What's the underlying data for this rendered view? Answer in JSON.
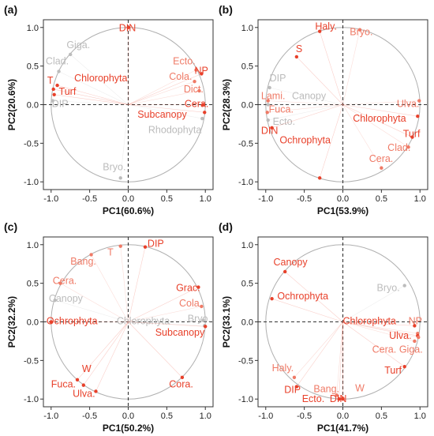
{
  "chart_data": [
    {
      "type": "scatter",
      "panel": "(a)",
      "xlabel": "PC1(60.6%)",
      "ylabel": "PC2(20.6%)",
      "xlim": [
        -1.1,
        1.1
      ],
      "ylim": [
        -1.1,
        1.1
      ],
      "xticks": [
        "-1.0",
        "-0.5",
        "0.0",
        "0.5",
        "1.0"
      ],
      "yticks": [
        "-1.0",
        "-0.5",
        "0.0",
        "0.5",
        "1.0"
      ],
      "colors": {
        "significant": "#e8402a",
        "mid": "#ef7a66",
        "faint": "#bcbcbc"
      },
      "points": [
        {
          "label": "DIN",
          "x": 0.0,
          "y": 1.0,
          "shade": "significant",
          "lx": -0.12,
          "ly": 0.95
        },
        {
          "label": "Giga.",
          "x": -0.75,
          "y": 0.65,
          "shade": "faint",
          "lx": -0.8,
          "ly": 0.73
        },
        {
          "label": "Clad.",
          "x": -0.9,
          "y": 0.43,
          "shade": "faint",
          "lx": -1.07,
          "ly": 0.52
        },
        {
          "label": "T",
          "x": -0.97,
          "y": 0.2,
          "shade": "significant",
          "lx": -1.05,
          "ly": 0.27
        },
        {
          "label": "Chlorophyta",
          "x": -0.92,
          "y": 0.25,
          "shade": "significant",
          "lx": -0.7,
          "ly": 0.3
        },
        {
          "label": "Turf",
          "x": -0.96,
          "y": 0.13,
          "shade": "significant",
          "lx": -0.9,
          "ly": 0.13
        },
        {
          "label": "DIP",
          "x": -0.98,
          "y": 0.05,
          "shade": "faint",
          "lx": -0.99,
          "ly": -0.03
        },
        {
          "label": "Ecto.",
          "x": 0.88,
          "y": 0.45,
          "shade": "mid",
          "lx": 0.58,
          "ly": 0.52
        },
        {
          "label": "NP",
          "x": 0.95,
          "y": 0.4,
          "shade": "significant",
          "lx": 0.86,
          "ly": 0.4
        },
        {
          "label": "Cola.",
          "x": 0.86,
          "y": 0.3,
          "shade": "mid",
          "lx": 0.53,
          "ly": 0.32
        },
        {
          "label": "Dict.",
          "x": 0.92,
          "y": 0.18,
          "shade": "mid",
          "lx": 0.72,
          "ly": 0.16
        },
        {
          "label": "Cera.",
          "x": 0.97,
          "y": 0.0,
          "shade": "significant",
          "lx": 0.73,
          "ly": -0.03
        },
        {
          "label": "Subcanopy",
          "x": 0.99,
          "y": -0.1,
          "shade": "significant",
          "lx": 0.12,
          "ly": -0.17
        },
        {
          "label": "Rhodophyta",
          "x": 0.96,
          "y": -0.18,
          "shade": "faint",
          "lx": 0.26,
          "ly": -0.37
        },
        {
          "label": "Bryo.",
          "x": -0.1,
          "y": -0.95,
          "shade": "faint",
          "lx": -0.33,
          "ly": -0.85
        }
      ]
    },
    {
      "type": "scatter",
      "panel": "(b)",
      "xlabel": "PC1(53.9%)",
      "ylabel": "PC2(28.3%)",
      "xlim": [
        -1.1,
        1.1
      ],
      "ylim": [
        -1.1,
        1.1
      ],
      "xticks": [
        "-1.0",
        "-0.5",
        "0.0",
        "0.5",
        "1.0"
      ],
      "yticks": [
        "-1.0",
        "-0.5",
        "0.0",
        "0.5",
        "1.0"
      ],
      "colors": {
        "significant": "#e8402a",
        "mid": "#ef7a66",
        "faint": "#bcbcbc"
      },
      "points": [
        {
          "label": "Haly.",
          "x": -0.3,
          "y": 0.95,
          "shade": "significant",
          "lx": -0.36,
          "ly": 0.97
        },
        {
          "label": "Bryo.",
          "x": 0.22,
          "y": 0.97,
          "shade": "mid",
          "lx": 0.09,
          "ly": 0.9
        },
        {
          "label": "S",
          "x": -0.6,
          "y": 0.62,
          "shade": "significant",
          "lx": -0.61,
          "ly": 0.68
        },
        {
          "label": "DIP",
          "x": -0.95,
          "y": 0.22,
          "shade": "faint",
          "lx": -0.95,
          "ly": 0.3
        },
        {
          "label": "Lami.",
          "x": -0.97,
          "y": 0.05,
          "shade": "mid",
          "lx": -1.06,
          "ly": 0.07
        },
        {
          "label": "Canopy",
          "x": -0.97,
          "y": 0.0,
          "shade": "faint",
          "lx": -0.66,
          "ly": 0.07
        },
        {
          "label": "Fuca.",
          "x": -0.98,
          "y": -0.1,
          "shade": "mid",
          "lx": -0.96,
          "ly": -0.1
        },
        {
          "label": "Ecto.",
          "x": -0.97,
          "y": -0.2,
          "shade": "faint",
          "lx": -0.91,
          "ly": -0.26
        },
        {
          "label": "DIN",
          "x": -0.92,
          "y": -0.3,
          "shade": "significant",
          "lx": -1.06,
          "ly": -0.38
        },
        {
          "label": "Ochrophyta",
          "x": -0.3,
          "y": -0.95,
          "shade": "significant",
          "lx": -0.82,
          "ly": -0.5
        },
        {
          "label": "Ulva.",
          "x": 0.99,
          "y": 0.05,
          "shade": "mid",
          "lx": 0.7,
          "ly": -0.03
        },
        {
          "label": "Chlorophyta",
          "x": 0.97,
          "y": -0.15,
          "shade": "significant",
          "lx": 0.13,
          "ly": -0.22
        },
        {
          "label": "Turf",
          "x": 0.9,
          "y": -0.42,
          "shade": "significant",
          "lx": 0.78,
          "ly": -0.42
        },
        {
          "label": "Clad.",
          "x": 0.85,
          "y": -0.55,
          "shade": "mid",
          "lx": 0.58,
          "ly": -0.6
        },
        {
          "label": "Cera.",
          "x": 0.5,
          "y": -0.82,
          "shade": "mid",
          "lx": 0.34,
          "ly": -0.74
        }
      ]
    },
    {
      "type": "scatter",
      "panel": "(c)",
      "xlabel": "PC1(50.2%)",
      "ylabel": "PC2(32.2%)",
      "xlim": [
        -1.1,
        1.1
      ],
      "ylim": [
        -1.1,
        1.1
      ],
      "xticks": [
        "-1.0",
        "-0.5",
        "0.0",
        "0.5",
        "1.0"
      ],
      "yticks": [
        "-1.0",
        "-0.5",
        "0.0",
        "0.5",
        "1.0"
      ],
      "colors": {
        "significant": "#e8402a",
        "mid": "#ef7a66",
        "faint": "#bcbcbc"
      },
      "points": [
        {
          "label": "DIP",
          "x": 0.22,
          "y": 0.97,
          "shade": "significant",
          "lx": 0.25,
          "ly": 0.97
        },
        {
          "label": "T",
          "x": -0.1,
          "y": 0.98,
          "shade": "mid",
          "lx": -0.27,
          "ly": 0.86
        },
        {
          "label": "Bang.",
          "x": -0.48,
          "y": 0.87,
          "shade": "mid",
          "lx": -0.75,
          "ly": 0.74
        },
        {
          "label": "Cera.",
          "x": -0.88,
          "y": 0.5,
          "shade": "mid",
          "lx": -0.98,
          "ly": 0.49
        },
        {
          "label": "Canopy",
          "x": -0.95,
          "y": 0.28,
          "shade": "faint",
          "lx": -1.03,
          "ly": 0.26
        },
        {
          "label": "Ochrophyta",
          "x": -1.0,
          "y": 0.0,
          "shade": "significant",
          "lx": -1.06,
          "ly": -0.03
        },
        {
          "label": "Grac.",
          "x": 0.91,
          "y": 0.45,
          "shade": "significant",
          "lx": 0.62,
          "ly": 0.4
        },
        {
          "label": "Cola.",
          "x": 0.95,
          "y": 0.2,
          "shade": "mid",
          "lx": 0.66,
          "ly": 0.2
        },
        {
          "label": "Chlorophyta",
          "x": 0.97,
          "y": 0.02,
          "shade": "faint",
          "lx": -0.15,
          "ly": -0.03
        },
        {
          "label": "Bryo.",
          "x": 0.99,
          "y": -0.05,
          "shade": "faint",
          "lx": 0.77,
          "ly": 0.0
        },
        {
          "label": "Subcanopy",
          "x": 1.0,
          "y": -0.06,
          "shade": "significant",
          "lx": 0.35,
          "ly": -0.18
        },
        {
          "label": "W",
          "x": -0.58,
          "y": -0.82,
          "shade": "significant",
          "lx": -0.6,
          "ly": -0.65
        },
        {
          "label": "Fuca.",
          "x": -0.66,
          "y": -0.75,
          "shade": "significant",
          "lx": -1.0,
          "ly": -0.85
        },
        {
          "label": "Ulva.",
          "x": -0.42,
          "y": -0.9,
          "shade": "significant",
          "lx": -0.72,
          "ly": -0.97
        },
        {
          "label": "Cora.",
          "x": 0.7,
          "y": -0.72,
          "shade": "significant",
          "lx": 0.53,
          "ly": -0.85
        }
      ]
    },
    {
      "type": "scatter",
      "panel": "(d)",
      "xlabel": "PC1(41.7%)",
      "ylabel": "PC2(33.1%)",
      "xlim": [
        -1.1,
        1.1
      ],
      "ylim": [
        -1.1,
        1.1
      ],
      "xticks": [
        "-1.0",
        "-0.5",
        "0.0",
        "0.5",
        "1.0"
      ],
      "yticks": [
        "-1.0",
        "-0.5",
        "0.0",
        "0.5",
        "1.0"
      ],
      "colors": {
        "significant": "#e8402a",
        "mid": "#ef7a66",
        "faint": "#bcbcbc"
      },
      "points": [
        {
          "label": "Canopy",
          "x": -0.75,
          "y": 0.65,
          "shade": "significant",
          "lx": -0.9,
          "ly": 0.73
        },
        {
          "label": "Ochrophyta",
          "x": -0.92,
          "y": 0.3,
          "shade": "significant",
          "lx": -0.85,
          "ly": 0.29
        },
        {
          "label": "Bryo.",
          "x": 0.8,
          "y": 0.47,
          "shade": "faint",
          "lx": 0.44,
          "ly": 0.4
        },
        {
          "label": "Chlorophyta",
          "x": 0.93,
          "y": -0.05,
          "shade": "significant",
          "lx": 0.0,
          "ly": -0.03
        },
        {
          "label": "NP",
          "x": 0.97,
          "y": -0.15,
          "shade": "mid",
          "lx": 0.85,
          "ly": -0.03
        },
        {
          "label": "Ulva.",
          "x": 0.97,
          "y": -0.18,
          "shade": "significant",
          "lx": 0.6,
          "ly": -0.22
        },
        {
          "label": "Giga.",
          "x": 0.98,
          "y": -0.2,
          "shade": "mid",
          "lx": 0.73,
          "ly": -0.4
        },
        {
          "label": "Cera.",
          "x": 0.93,
          "y": -0.25,
          "shade": "mid",
          "lx": 0.38,
          "ly": -0.4
        },
        {
          "label": "Turf",
          "x": 0.8,
          "y": -0.58,
          "shade": "significant",
          "lx": 0.54,
          "ly": -0.67
        },
        {
          "label": "Haly.",
          "x": -0.63,
          "y": -0.72,
          "shade": "mid",
          "lx": -0.92,
          "ly": -0.64
        },
        {
          "label": "DIP",
          "x": -0.6,
          "y": -0.84,
          "shade": "significant",
          "lx": -0.76,
          "ly": -0.92
        },
        {
          "label": "Bang.",
          "x": -0.08,
          "y": -0.95,
          "shade": "mid",
          "lx": -0.38,
          "ly": -0.91
        },
        {
          "label": "W",
          "x": 0.0,
          "y": -0.99,
          "shade": "mid",
          "lx": 0.16,
          "ly": -0.9
        },
        {
          "label": "Ecto.",
          "x": -0.05,
          "y": -1.0,
          "shade": "significant",
          "lx": -0.53,
          "ly": -1.04
        },
        {
          "label": "DIN",
          "x": 0.0,
          "y": -1.0,
          "shade": "significant",
          "lx": -0.17,
          "ly": -1.04
        }
      ]
    }
  ]
}
